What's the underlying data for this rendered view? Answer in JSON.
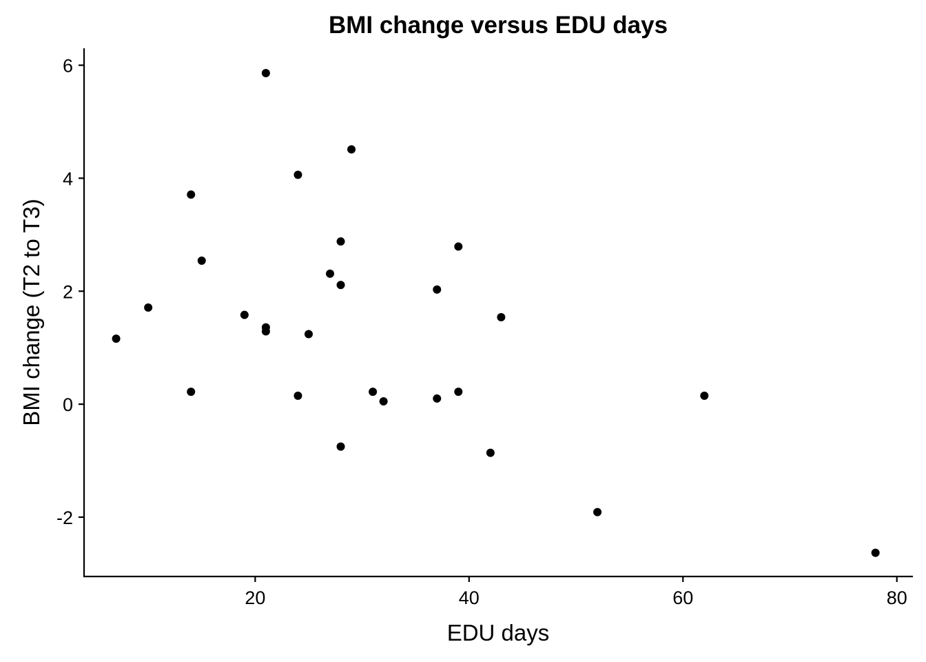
{
  "chart_data": {
    "type": "scatter",
    "title": "BMI change versus EDU days",
    "xlabel": "EDU days",
    "ylabel": "BMI change (T2 to T3)",
    "xlim": [
      4,
      81.5
    ],
    "ylim": [
      -3.05,
      6.3
    ],
    "xticks": [
      20,
      40,
      60,
      80
    ],
    "xtick_labels": [
      "20",
      "40",
      "60",
      "80"
    ],
    "yticks": [
      -2,
      0,
      2,
      4,
      6
    ],
    "ytick_labels": [
      "-2",
      "0",
      "2",
      "4",
      "6"
    ],
    "grid": false,
    "legend": "none",
    "point_color": "#000000",
    "points": [
      {
        "x": 7,
        "y": 1.16
      },
      {
        "x": 10,
        "y": 1.71
      },
      {
        "x": 14,
        "y": 3.71
      },
      {
        "x": 14,
        "y": 0.22
      },
      {
        "x": 15,
        "y": 2.54
      },
      {
        "x": 19,
        "y": 1.58
      },
      {
        "x": 21,
        "y": 5.86
      },
      {
        "x": 21,
        "y": 1.36
      },
      {
        "x": 21,
        "y": 1.29
      },
      {
        "x": 24,
        "y": 4.06
      },
      {
        "x": 24,
        "y": 0.15
      },
      {
        "x": 25,
        "y": 1.24
      },
      {
        "x": 27,
        "y": 2.31
      },
      {
        "x": 28,
        "y": 2.88
      },
      {
        "x": 28,
        "y": 2.11
      },
      {
        "x": 28,
        "y": -0.75
      },
      {
        "x": 29,
        "y": 4.51
      },
      {
        "x": 31,
        "y": 0.22
      },
      {
        "x": 32,
        "y": 0.05
      },
      {
        "x": 37,
        "y": 2.03
      },
      {
        "x": 37,
        "y": 0.1
      },
      {
        "x": 39,
        "y": 2.79
      },
      {
        "x": 39,
        "y": 0.22
      },
      {
        "x": 42,
        "y": -0.86
      },
      {
        "x": 43,
        "y": 1.54
      },
      {
        "x": 52,
        "y": -1.91
      },
      {
        "x": 62,
        "y": 0.15
      },
      {
        "x": 78,
        "y": -2.63
      }
    ]
  }
}
